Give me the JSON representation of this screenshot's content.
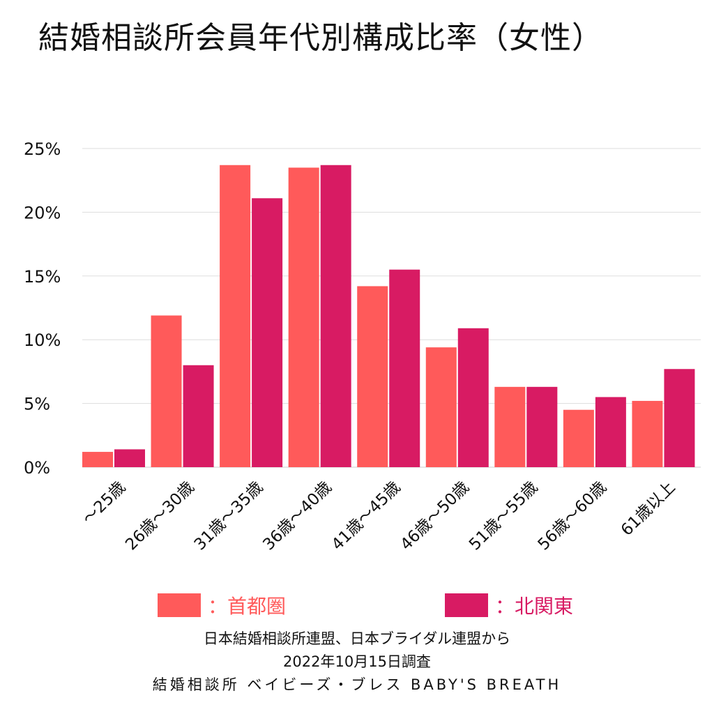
{
  "chart_data": {
    "type": "bar",
    "title": "結婚相談所会員年代別構成比率（女性）",
    "categories": [
      "～25歳",
      "26歳～30歳",
      "31歳～35歳",
      "36歳～40歳",
      "41歳～45歳",
      "46歳～50歳",
      "51歳～55歳",
      "56歳～60歳",
      "61歳以上"
    ],
    "series": [
      {
        "name": "首都圏",
        "color": "#ff5a5a",
        "values": [
          1.2,
          11.9,
          23.7,
          23.5,
          14.2,
          9.4,
          6.3,
          4.5,
          5.2
        ]
      },
      {
        "name": "北関東",
        "color": "#d81b63",
        "values": [
          1.4,
          8.0,
          21.1,
          23.7,
          15.5,
          10.9,
          6.3,
          5.5,
          7.7
        ]
      }
    ],
    "ylim": [
      0,
      25
    ],
    "yticks": [
      0,
      5,
      10,
      15,
      20,
      25
    ],
    "ytick_labels": [
      "0%",
      "5%",
      "10%",
      "15%",
      "20%",
      "25%"
    ],
    "grid": true,
    "legend_position": "bottom"
  },
  "legend": {
    "a_label": "：首都圏",
    "b_label": "：北関東"
  },
  "notes": {
    "source": "日本結婚相談所連盟、日本ブライダル連盟から",
    "date": "2022年10月15日調査",
    "credit": "結婚相談所 ベイビーズ・ブレス BABY'S BREATH"
  }
}
